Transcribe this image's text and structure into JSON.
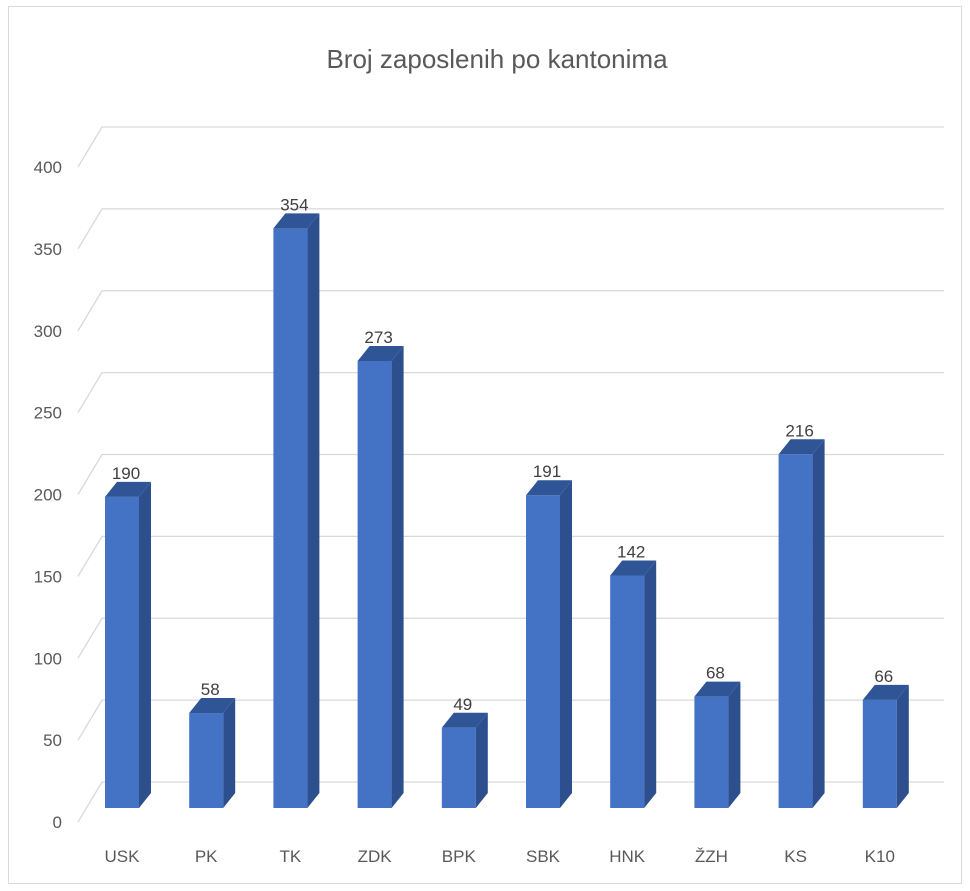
{
  "chart_data": {
    "type": "bar",
    "title": "Broj zaposlenih po kantonima",
    "xlabel": "",
    "ylabel": "",
    "categories": [
      "USK",
      "PK",
      "TK",
      "ZDK",
      "BPK",
      "SBK",
      "HNK",
      "ŽZH",
      "KS",
      "K10"
    ],
    "values": [
      190,
      58,
      354,
      273,
      49,
      191,
      142,
      68,
      216,
      66
    ],
    "ylim": [
      0,
      400
    ],
    "yticks": [
      0,
      50,
      100,
      150,
      200,
      250,
      300,
      350,
      400
    ],
    "grid": true,
    "legend": "none",
    "bar_style": "3d",
    "colors": {
      "front": "#4472c4",
      "side": "#2e4f8e",
      "top": "#2f5597",
      "grid": "#d9d9d9"
    }
  }
}
